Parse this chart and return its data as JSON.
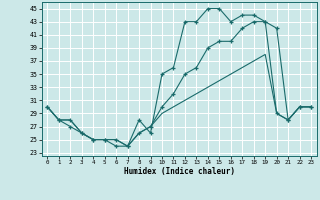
{
  "title": "",
  "xlabel": "Humidex (Indice chaleur)",
  "bg_color": "#cce8e8",
  "grid_color": "#ffffff",
  "line_color": "#1a6b6b",
  "xlim": [
    -0.5,
    23.5
  ],
  "ylim": [
    22.5,
    46
  ],
  "yticks": [
    23,
    25,
    27,
    29,
    31,
    33,
    35,
    37,
    39,
    41,
    43,
    45
  ],
  "xticks": [
    0,
    1,
    2,
    3,
    4,
    5,
    6,
    7,
    8,
    9,
    10,
    11,
    12,
    13,
    14,
    15,
    16,
    17,
    18,
    19,
    20,
    21,
    22,
    23
  ],
  "line1_x": [
    0,
    1,
    2,
    3,
    4,
    5,
    6,
    7,
    8,
    9,
    10,
    11,
    12,
    13,
    14,
    15,
    16,
    17,
    18,
    19,
    20,
    21,
    22,
    23
  ],
  "line1_y": [
    30,
    28,
    27,
    26,
    25,
    25,
    24,
    24,
    28,
    26,
    35,
    36,
    43,
    43,
    45,
    45,
    43,
    44,
    44,
    43,
    29,
    28,
    30,
    30
  ],
  "line2_x": [
    0,
    1,
    2,
    3,
    4,
    5,
    6,
    7,
    8,
    9,
    10,
    11,
    12,
    13,
    14,
    15,
    16,
    17,
    18,
    19,
    20,
    21,
    22,
    23
  ],
  "line2_y": [
    30,
    28,
    28,
    26,
    25,
    25,
    25,
    24,
    26,
    27,
    30,
    32,
    35,
    36,
    39,
    40,
    40,
    42,
    43,
    43,
    42,
    28,
    30,
    30
  ],
  "line3_x": [
    0,
    1,
    2,
    3,
    4,
    5,
    6,
    7,
    8,
    9,
    10,
    11,
    12,
    13,
    14,
    15,
    16,
    17,
    18,
    19,
    20,
    21,
    22,
    23
  ],
  "line3_y": [
    30,
    28,
    28,
    26,
    25,
    25,
    25,
    24,
    26,
    27,
    29,
    30,
    31,
    32,
    33,
    34,
    35,
    36,
    37,
    38,
    29,
    28,
    30,
    30
  ]
}
